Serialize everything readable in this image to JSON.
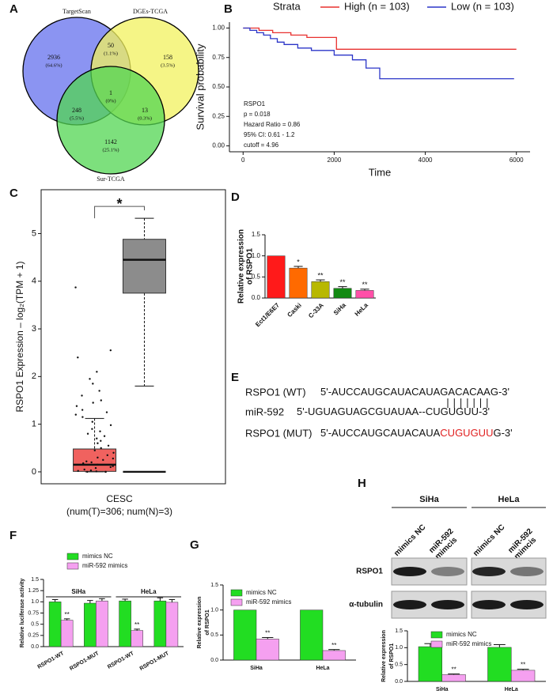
{
  "panel_labels": [
    "A",
    "B",
    "C",
    "D",
    "E",
    "F",
    "G",
    "H"
  ],
  "venn": {
    "sets": [
      {
        "label": "TargetScan",
        "color": "#6470ee"
      },
      {
        "label": "DGEs-TCGA",
        "color": "#f2f25e"
      },
      {
        "label": "Sur-TCGA",
        "color": "#52d652"
      }
    ],
    "regions": [
      {
        "count": 2936,
        "percent": "(64.6%)"
      },
      {
        "count": 158,
        "percent": "(3.5%)"
      },
      {
        "count": 1142,
        "percent": "(25.1%)"
      },
      {
        "count": 50,
        "percent": "(1.1%)"
      },
      {
        "count": 248,
        "percent": "(5.5%)"
      },
      {
        "count": 13,
        "percent": "(0.3%)"
      },
      {
        "count": 1,
        "percent": "(0%)"
      }
    ]
  },
  "sequences": [
    {
      "name": "RSPO1 (WT)",
      "parts": [
        {
          "text": "5'-AUCCAUGCAUACAUAGACACAAG-3'"
        }
      ]
    },
    {
      "name": "miR-592",
      "parts": [
        {
          "text": "5'-UGUAGUAGCGUAUAA--CUGUGUU-3'"
        }
      ]
    },
    {
      "name": "RSPO1 (MUT)",
      "parts": [
        {
          "text": "5'-AUCCAUGCAUACAUA"
        },
        {
          "text": "CUGUGUU",
          "color": "#e02020"
        },
        {
          "text": "G-3'"
        }
      ]
    }
  ],
  "blot": {
    "cells": [
      "SiHa",
      "HeLa"
    ],
    "lanes": [
      [
        "mimics NC"
      ],
      [
        "miR-592",
        "mimcis"
      ],
      [
        "mimics NC"
      ],
      [
        "miR-592",
        "mimcis"
      ]
    ],
    "proteins": [
      "RSPO1",
      "α-tubulin"
    ]
  },
  "chart_data": [
    {
      "type": "line",
      "legend_title": "Strata",
      "xlabel": "Time",
      "ylabel": "Survival probability",
      "series": [
        {
          "name": "High (n = 103)",
          "color": "#e8312f",
          "x": [
            0,
            350,
            350,
            650,
            650,
            1050,
            1050,
            1400,
            1400,
            2050,
            2050,
            6000
          ],
          "values": [
            1,
            1,
            0.98,
            0.98,
            0.96,
            0.96,
            0.94,
            0.94,
            0.92,
            0.92,
            0.82,
            0.82
          ]
        },
        {
          "name": "Low (n = 103)",
          "color": "#2b35c8",
          "x": [
            0,
            150,
            150,
            300,
            300,
            450,
            450,
            600,
            600,
            750,
            750,
            900,
            900,
            1200,
            1200,
            1500,
            1500,
            2000,
            2000,
            2400,
            2400,
            2700,
            2700,
            3000,
            3000,
            5950
          ],
          "values": [
            1,
            1,
            0.98,
            0.98,
            0.96,
            0.96,
            0.94,
            0.94,
            0.91,
            0.91,
            0.88,
            0.88,
            0.86,
            0.86,
            0.83,
            0.83,
            0.81,
            0.81,
            0.77,
            0.77,
            0.73,
            0.73,
            0.66,
            0.66,
            0.57,
            0.57
          ]
        }
      ],
      "xlim": [
        -300,
        6300
      ],
      "ylim": [
        -0.05,
        1.05
      ],
      "xticks": [
        0,
        2000,
        4000,
        6000
      ],
      "yticks": [
        {
          "value": 0,
          "label": "0.00"
        },
        0.25,
        {
          "value": 0.5,
          "label": "0.50"
        },
        0.75,
        {
          "value": 1,
          "label": "1.00"
        }
      ],
      "annotations": [
        "RSPO1",
        "p = 0.018",
        "Hazard Ratio = 0.86",
        "95% CI: 0.61 - 1.2",
        "cutoff = 4.96"
      ]
    },
    {
      "type": "box",
      "ylabel": "RSPO1 Expression – log₂(TPM + 1)",
      "categories": [
        "CESC"
      ],
      "category_note": "(num(T)=306; num(N)=3)",
      "series": [
        {
          "color": "#f0625f",
          "low": 0,
          "q1": 0.01,
          "median": 0.15,
          "q3": 0.48,
          "high": 1.12,
          "points": [
            3.87,
            2.55,
            2.4,
            2.1,
            1.95,
            1.85,
            1.7,
            1.6,
            1.5,
            1.45,
            1.38,
            1.3,
            1.25,
            1.2,
            1.15,
            1.05,
            0.98,
            0.9,
            0.85,
            0.8,
            0.75,
            0.7,
            0.65,
            0.6,
            0.55,
            0.5,
            0.45,
            0.4,
            0.35,
            0.3,
            0.28,
            0.25,
            0.22,
            0.2,
            0.18,
            0.15,
            0.12,
            0.1,
            0.08,
            0.05,
            0.03,
            0.02,
            0.01,
            0,
            0,
            0
          ]
        },
        {
          "color": "#8c8c8c",
          "low": 1.8,
          "q1": 3.75,
          "median": 4.45,
          "q3": 4.88,
          "high": 5.32,
          "points": [
            0,
            0,
            0
          ]
        }
      ],
      "ylim": [
        -0.25,
        5.92
      ],
      "yticks": [
        0,
        1,
        2,
        3,
        4,
        5
      ],
      "significance": "*",
      "significance_color": "#e02020"
    },
    {
      "type": "bar",
      "ylabel": [
        "Relative expression",
        "of RSPO1"
      ],
      "categories": [
        "Ect1/E6E7",
        "Caski",
        "C-33A",
        "SiHa",
        "HeLa"
      ],
      "series": [
        {
          "values": [
            1.0,
            0.71,
            0.39,
            0.23,
            0.18
          ],
          "errors": [
            null,
            0.04,
            0.04,
            0.04,
            0.03
          ],
          "colors": [
            "#ff1a1a",
            "#ff6a00",
            "#b8b800",
            "#138a13",
            "#ff4fa8"
          ],
          "significance": [
            null,
            "*",
            "**",
            "**",
            "**"
          ]
        }
      ],
      "ylim": [
        0,
        1.5
      ],
      "yticks": [
        {
          "value": 0,
          "label": "0.0"
        },
        0.5,
        {
          "value": 1,
          "label": "1.0"
        },
        1.5
      ]
    },
    {
      "type": "bar",
      "ylabel": [
        "Relative luciferase activity"
      ],
      "groups": [
        {
          "label": "SiHa",
          "categories": [
            "RSPO1-WT",
            "RSPO1-MUT"
          ]
        },
        {
          "label": "HeLa",
          "categories": [
            "RSPO1-WT",
            "RSPO1-MUT"
          ]
        }
      ],
      "series": [
        {
          "name": "mimics NC",
          "color": "#22dd22",
          "values": [
            1.0,
            0.97,
            1.02,
            1.02
          ],
          "errors": [
            0.05,
            0.06,
            0.04,
            0.07
          ]
        },
        {
          "name": "miR-592 mimics",
          "color": "#f5a0f0",
          "values": [
            0.59,
            1.02,
            0.36,
            0.99
          ],
          "errors": [
            0.03,
            0.05,
            0.03,
            0.06
          ],
          "significance": [
            "**",
            null,
            "**",
            null
          ]
        }
      ],
      "ylim": [
        0,
        1.5
      ],
      "yticks": [
        {
          "value": 0,
          "label": "0.0"
        },
        0.25,
        0.5,
        0.75,
        {
          "value": 1,
          "label": "1.0"
        },
        1.25,
        1.5
      ]
    },
    {
      "type": "bar",
      "ylabel": [
        "Relative expression",
        "of RSPO1"
      ],
      "categories": [
        "SiHa",
        "HeLa"
      ],
      "series": [
        {
          "name": "mimics NC",
          "color": "#22dd22",
          "values": [
            1.0,
            1.0
          ],
          "errors": [
            null,
            null
          ]
        },
        {
          "name": "miR-592 mimics",
          "color": "#f5a0f0",
          "values": [
            0.42,
            0.19
          ],
          "errors": [
            0.03,
            0.02
          ],
          "significance": [
            "**",
            "**"
          ]
        }
      ],
      "ylim": [
        0,
        1.5
      ],
      "yticks": [
        {
          "value": 0,
          "label": "0.0"
        },
        0.5,
        {
          "value": 1,
          "label": "1.0"
        },
        1.5
      ]
    },
    {
      "type": "bar",
      "ylabel": [
        "Relative expression",
        "of RSPO1"
      ],
      "categories": [
        "SiHa",
        "HeLa"
      ],
      "series": [
        {
          "name": "mimics NC",
          "color": "#22dd22",
          "values": [
            1.03,
            1.01
          ],
          "errors": [
            0.09,
            0.08
          ]
        },
        {
          "name": "miR-592 mimics",
          "color": "#f5a0f0",
          "values": [
            0.2,
            0.33
          ],
          "errors": [
            0.02,
            0.03
          ],
          "significance": [
            "**",
            "**"
          ]
        }
      ],
      "ylim": [
        0,
        1.5
      ],
      "yticks": [
        {
          "value": 0,
          "label": "0.0"
        },
        0.5,
        {
          "value": 1,
          "label": "1.0"
        },
        1.5
      ]
    }
  ]
}
